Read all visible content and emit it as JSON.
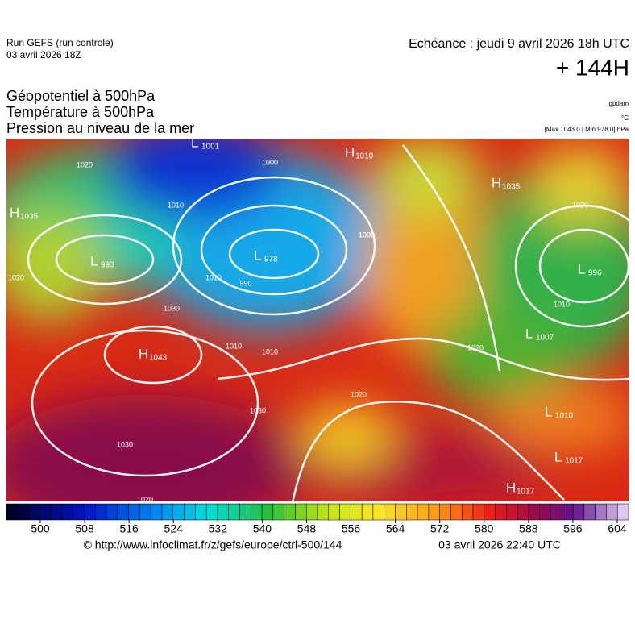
{
  "header": {
    "run": "Run GEFS (run controle)",
    "run_date": "03 avril 2026 18Z",
    "valid": "Echéance : jeudi 9 avril 2026 18h UTC",
    "lead": "+ 144H",
    "fields": [
      "Géopotentiel à 500hPa",
      "Température à 500hPa",
      "Pression au niveau de la mer"
    ],
    "unit_geo": "gpdam",
    "unit_temp": "°C",
    "pressure_range": "[Max 1043.0 | Min 978.0] hPa"
  },
  "map": {
    "centers": [
      {
        "letter": "H",
        "value": "1035"
      },
      {
        "letter": "L",
        "value": "993"
      },
      {
        "letter": "H",
        "value": "1043"
      },
      {
        "letter": "L",
        "value": "978"
      },
      {
        "letter": "L",
        "value": "1001"
      },
      {
        "letter": "H",
        "value": "1010"
      },
      {
        "letter": "H",
        "value": "1035"
      },
      {
        "letter": "L",
        "value": "996"
      },
      {
        "letter": "L",
        "value": "1007"
      },
      {
        "letter": "L",
        "value": "1010"
      },
      {
        "letter": "L",
        "value": "1017"
      },
      {
        "letter": "H",
        "value": "1017"
      }
    ],
    "isobar_labels": [
      "1020",
      "1010",
      "1000",
      "1010",
      "1000",
      "990",
      "1000",
      "1030",
      "1020",
      "1010",
      "1030",
      "1030",
      "1020",
      "1020",
      "1020",
      "1010",
      "1010",
      "1020"
    ]
  },
  "colorbar": {
    "ticks": [
      500,
      508,
      516,
      524,
      532,
      540,
      548,
      556,
      564,
      572,
      580,
      588,
      596,
      604
    ]
  },
  "footer": {
    "source": "© http://www.infoclimat.fr/z/gefs/europe/ctrl-500/144",
    "generated": "03 avril 2026 22:40 UTC"
  }
}
